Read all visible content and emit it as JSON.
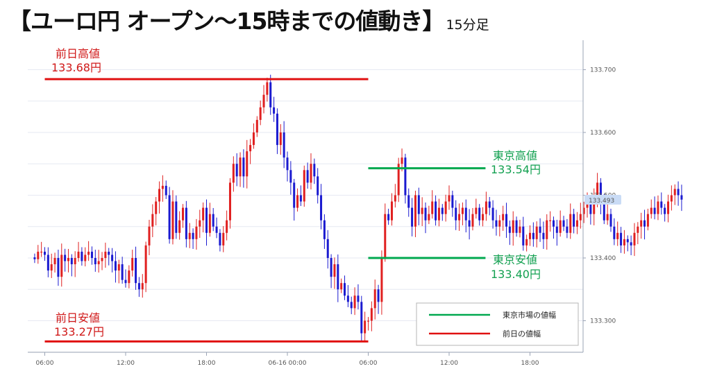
{
  "title": {
    "main": "【ユーロ円 オープン～15時までの値動き】",
    "sub": "15分足"
  },
  "colors": {
    "up": "#e02020",
    "down": "#1a1ad0",
    "prev_day_line": "#e01010",
    "tokyo_line": "#00a84f",
    "prev_day_text": "#d01818",
    "tokyo_text": "#12a050",
    "grid": "#e6e9f2",
    "axis": "#9aa3b5",
    "price_badge": "#c9dbf5"
  },
  "annotations": {
    "prev_high": {
      "label": "前日高値",
      "value": "133.68円",
      "price": 133.685
    },
    "prev_low": {
      "label": "前日安値",
      "value": "133.27円",
      "price": 133.267
    },
    "tokyo_high": {
      "label": "東京高値",
      "value": "133.54円",
      "price": 133.543
    },
    "tokyo_low": {
      "label": "東京安値",
      "value": "133.40円",
      "price": 133.4
    }
  },
  "legend": {
    "tokyo": "東京市場の値幅",
    "prev": "前日の値幅"
  },
  "chart_data": {
    "type": "candlestick",
    "y_ticks": [
      "133.300",
      "133.400",
      "133.500",
      "133.600",
      "133.700"
    ],
    "y_tick_values": [
      133.3,
      133.4,
      133.5,
      133.6,
      133.7
    ],
    "ylim": [
      133.255,
      133.76
    ],
    "current_price": "133.493",
    "current_price_value": 133.493,
    "x_ticks": [
      "06:00",
      "12:00",
      "18:00",
      "06-16 00:00",
      "06:00",
      "12:00",
      "18:00"
    ],
    "x_tick_hours": [
      6,
      12,
      18,
      24,
      30,
      36,
      42
    ],
    "xlim": [
      5,
      45
    ],
    "segments": [
      {
        "name": "prev_day_high",
        "price": 133.685,
        "from_hour": 6,
        "to_hour": 30
      },
      {
        "name": "prev_day_low",
        "price": 133.267,
        "from_hour": 6,
        "to_hour": 30
      },
      {
        "name": "tokyo_high",
        "price": 133.543,
        "from_hour": 30,
        "to_hour": 38.7
      },
      {
        "name": "tokyo_low",
        "price": 133.4,
        "from_hour": 30,
        "to_hour": 38.7
      }
    ],
    "start_hour": 5.25,
    "interval_minutes": 15,
    "closes": [
      133.398,
      133.41,
      133.41,
      133.405,
      133.38,
      133.39,
      133.4,
      133.37,
      133.405,
      133.395,
      133.4,
      133.39,
      133.4,
      133.41,
      133.395,
      133.405,
      133.41,
      133.4,
      133.39,
      133.395,
      133.4,
      133.41,
      133.405,
      133.395,
      133.38,
      133.39,
      133.365,
      133.36,
      133.38,
      133.4,
      133.36,
      133.35,
      133.36,
      133.42,
      133.45,
      133.47,
      133.49,
      133.51,
      133.515,
      133.5,
      133.43,
      133.49,
      133.44,
      133.46,
      133.48,
      133.43,
      133.44,
      133.43,
      133.45,
      133.46,
      133.48,
      133.44,
      133.47,
      133.45,
      133.44,
      133.42,
      133.44,
      133.46,
      133.52,
      133.55,
      133.53,
      133.56,
      133.53,
      133.57,
      133.58,
      133.6,
      133.62,
      133.64,
      133.66,
      133.68,
      133.64,
      133.63,
      133.58,
      133.6,
      133.56,
      133.54,
      133.52,
      133.48,
      133.5,
      133.49,
      133.54,
      133.52,
      133.55,
      133.53,
      133.5,
      133.46,
      133.43,
      133.4,
      133.37,
      133.39,
      133.35,
      133.36,
      133.34,
      133.33,
      133.32,
      133.34,
      133.33,
      133.28,
      133.3,
      133.3,
      133.32,
      133.35,
      133.33,
      133.4,
      133.47,
      133.46,
      133.49,
      133.5,
      133.55,
      133.56,
      133.5,
      133.48,
      133.45,
      133.5,
      133.47,
      133.48,
      133.46,
      133.47,
      133.49,
      133.46,
      133.48,
      133.47,
      133.49,
      133.5,
      133.48,
      133.46,
      133.47,
      133.48,
      133.46,
      133.45,
      133.47,
      133.48,
      133.46,
      133.47,
      133.49,
      133.48,
      133.46,
      133.45,
      133.46,
      133.47,
      133.45,
      133.44,
      133.46,
      133.44,
      133.45,
      133.42,
      133.43,
      133.44,
      133.43,
      133.45,
      133.44,
      133.43,
      133.46,
      133.46,
      133.45,
      133.44,
      133.46,
      133.45,
      133.44,
      133.47,
      133.45,
      133.46,
      133.47,
      133.48,
      133.49,
      133.47,
      133.5,
      133.52,
      133.49,
      133.46,
      133.47,
      133.45,
      133.43,
      133.44,
      133.42,
      133.43,
      133.425,
      133.42,
      133.44,
      133.45,
      133.46,
      133.45,
      133.47,
      133.48,
      133.47,
      133.49,
      133.48,
      133.47,
      133.49,
      133.5,
      133.51,
      133.5,
      133.493
    ]
  }
}
